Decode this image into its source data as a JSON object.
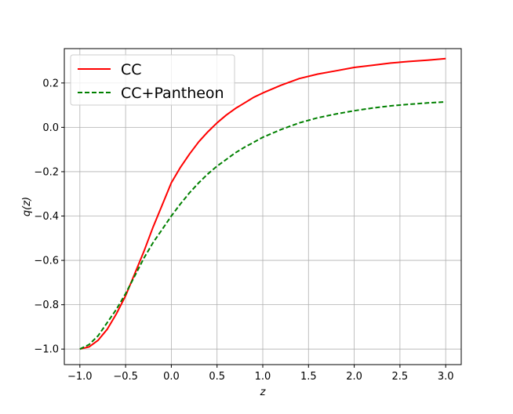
{
  "chart_data": {
    "type": "line",
    "title": "",
    "xlabel": "z",
    "ylabel": "q(z)",
    "xlim": [
      -1.17,
      3.17
    ],
    "ylim": [
      -1.07,
      0.355
    ],
    "xticks": [
      -1.0,
      -0.5,
      0.0,
      0.5,
      1.0,
      1.5,
      2.0,
      2.5,
      3.0
    ],
    "xtick_labels": [
      "−1.0",
      "−0.5",
      "0.0",
      "0.5",
      "1.0",
      "1.5",
      "2.0",
      "2.5",
      "3.0"
    ],
    "yticks": [
      -1.0,
      -0.8,
      -0.6,
      -0.4,
      -0.2,
      0.0,
      0.2
    ],
    "ytick_labels": [
      "−1.0",
      "−0.8",
      "−0.6",
      "−0.4",
      "−0.2",
      "0.0",
      "0.2"
    ],
    "grid": true,
    "legend_position": "top-left",
    "series": [
      {
        "name": "CC",
        "color": "#ff0000",
        "style": "solid",
        "x": [
          -1.0,
          -0.9,
          -0.8,
          -0.7,
          -0.6,
          -0.5,
          -0.4,
          -0.3,
          -0.2,
          -0.1,
          0.0,
          0.1,
          0.2,
          0.3,
          0.4,
          0.5,
          0.6,
          0.7,
          0.8,
          0.9,
          1.0,
          1.2,
          1.4,
          1.6,
          1.8,
          2.0,
          2.2,
          2.4,
          2.6,
          2.8,
          3.0
        ],
        "y": [
          -1.0,
          -0.99,
          -0.96,
          -0.91,
          -0.84,
          -0.76,
          -0.66,
          -0.56,
          -0.45,
          -0.35,
          -0.25,
          -0.18,
          -0.12,
          -0.065,
          -0.02,
          0.02,
          0.055,
          0.085,
          0.11,
          0.135,
          0.155,
          0.19,
          0.22,
          0.24,
          0.255,
          0.27,
          0.28,
          0.29,
          0.297,
          0.303,
          0.31
        ]
      },
      {
        "name": "CC+Pantheon",
        "color": "#008000",
        "style": "dashed",
        "x": [
          -1.0,
          -0.9,
          -0.8,
          -0.7,
          -0.6,
          -0.5,
          -0.4,
          -0.3,
          -0.2,
          -0.1,
          0.0,
          0.1,
          0.2,
          0.3,
          0.4,
          0.5,
          0.6,
          0.7,
          0.8,
          0.9,
          1.0,
          1.2,
          1.4,
          1.6,
          1.8,
          2.0,
          2.2,
          2.4,
          2.6,
          2.8,
          3.0
        ],
        "y": [
          -1.0,
          -0.98,
          -0.94,
          -0.88,
          -0.82,
          -0.75,
          -0.67,
          -0.59,
          -0.52,
          -0.46,
          -0.4,
          -0.345,
          -0.295,
          -0.25,
          -0.21,
          -0.175,
          -0.145,
          -0.115,
          -0.09,
          -0.068,
          -0.045,
          -0.01,
          0.02,
          0.043,
          0.06,
          0.075,
          0.087,
          0.097,
          0.104,
          0.11,
          0.115
        ]
      }
    ]
  }
}
